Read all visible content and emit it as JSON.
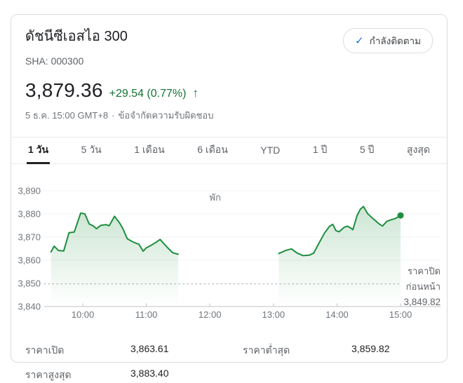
{
  "header": {
    "title": "ดัชนีซีเอสไอ 300",
    "exchange_code": "SHA: 000300",
    "follow_button": {
      "label": "กำลังติดตาม",
      "check_glyph": "✓",
      "accent": "#1a73e8"
    }
  },
  "quote": {
    "price": "3,879.36",
    "change": "+29.54 (0.77%)",
    "up_arrow_glyph": "↑",
    "change_color": "#137333",
    "timestamp": "5 ธ.ค. 15:00 GMT+8",
    "separator": "·",
    "disclaimer": "ข้อจำกัดความรับผิดชอบ"
  },
  "range_tabs": [
    {
      "id": "1d",
      "label": "1 วัน",
      "active": true
    },
    {
      "id": "5d",
      "label": "5 วัน",
      "active": false
    },
    {
      "id": "1m",
      "label": "1 เดือน",
      "active": false
    },
    {
      "id": "6m",
      "label": "6 เดือน",
      "active": false
    },
    {
      "id": "ytd",
      "label": "YTD",
      "active": false
    },
    {
      "id": "1y",
      "label": "1 ปี",
      "active": false
    },
    {
      "id": "5y",
      "label": "5 ปี",
      "active": false
    },
    {
      "id": "max",
      "label": "สูงสุด",
      "active": false
    }
  ],
  "chart_data": {
    "type": "line",
    "title": "",
    "xlabel": "",
    "ylabel": "",
    "grid": true,
    "ylim": [
      3840,
      3890
    ],
    "y_tick_values": [
      3890,
      3880,
      3870,
      3860,
      3850,
      3840
    ],
    "y_tick_labels": [
      "3,890",
      "3,880",
      "3,870",
      "3,860",
      "3,850",
      "3,840"
    ],
    "x_tick_times": [
      "10:00",
      "11:00",
      "12:00",
      "13:00",
      "14:00",
      "15:00"
    ],
    "x_range": [
      "09:30",
      "15:00"
    ],
    "break_label": "พัก",
    "break_time": "12:05",
    "prev_close_label_lines": [
      "ราคาปิด",
      "ก่อนหน้า"
    ],
    "prev_close_value_label": "3,849.82",
    "prev_close": 3849.82,
    "line_color": "#1e8e3e",
    "dot_color": "#1e8e3e",
    "series": [
      {
        "name": "morning-session",
        "points": [
          [
            "09:30",
            3863.6
          ],
          [
            "09:33",
            3866.1
          ],
          [
            "09:37",
            3864.2
          ],
          [
            "09:42",
            3864.0
          ],
          [
            "09:47",
            3871.9
          ],
          [
            "09:52",
            3872.2
          ],
          [
            "09:58",
            3880.4
          ],
          [
            "10:02",
            3880.0
          ],
          [
            "10:06",
            3875.7
          ],
          [
            "10:10",
            3874.8
          ],
          [
            "10:13",
            3873.6
          ],
          [
            "10:17",
            3875.1
          ],
          [
            "10:22",
            3875.4
          ],
          [
            "10:25",
            3874.9
          ],
          [
            "10:30",
            3879.0
          ],
          [
            "10:35",
            3875.9
          ],
          [
            "10:38",
            3873.5
          ],
          [
            "10:42",
            3869.3
          ],
          [
            "10:46",
            3868.2
          ],
          [
            "10:50",
            3867.4
          ],
          [
            "10:53",
            3866.9
          ],
          [
            "10:57",
            3863.9
          ],
          [
            "11:00",
            3865.4
          ],
          [
            "11:05",
            3866.6
          ],
          [
            "11:10",
            3868.0
          ],
          [
            "11:13",
            3869.0
          ],
          [
            "11:17",
            3866.9
          ],
          [
            "11:21",
            3865.0
          ],
          [
            "11:25",
            3863.2
          ],
          [
            "11:30",
            3862.6
          ]
        ]
      },
      {
        "name": "afternoon-session",
        "points": [
          [
            "13:05",
            3862.9
          ],
          [
            "13:12",
            3864.3
          ],
          [
            "13:17",
            3864.9
          ],
          [
            "13:22",
            3863.2
          ],
          [
            "13:28",
            3862.0
          ],
          [
            "13:34",
            3862.2
          ],
          [
            "13:38",
            3863.1
          ],
          [
            "13:43",
            3867.4
          ],
          [
            "13:48",
            3871.6
          ],
          [
            "13:53",
            3874.7
          ],
          [
            "13:56",
            3875.5
          ],
          [
            "13:59",
            3872.8
          ],
          [
            "14:02",
            3872.3
          ],
          [
            "14:07",
            3874.3
          ],
          [
            "14:10",
            3874.7
          ],
          [
            "14:13",
            3873.9
          ],
          [
            "14:15",
            3873.2
          ],
          [
            "14:19",
            3879.4
          ],
          [
            "14:22",
            3882.0
          ],
          [
            "14:25",
            3883.2
          ],
          [
            "14:29",
            3880.1
          ],
          [
            "14:33",
            3878.4
          ],
          [
            "14:37",
            3876.8
          ],
          [
            "14:40",
            3875.6
          ],
          [
            "14:43",
            3874.8
          ],
          [
            "14:47",
            3876.8
          ],
          [
            "14:51",
            3877.5
          ],
          [
            "14:55",
            3878.0
          ],
          [
            "15:00",
            3879.36
          ]
        ]
      }
    ]
  },
  "stats": {
    "open_label": "ราคาเปิด",
    "open_value": "3,863.61",
    "high_label": "ราคาสูงสุด",
    "high_value": "3,883.40",
    "low_label": "ราคาต่ำสุด",
    "low_value": "3,859.82"
  }
}
